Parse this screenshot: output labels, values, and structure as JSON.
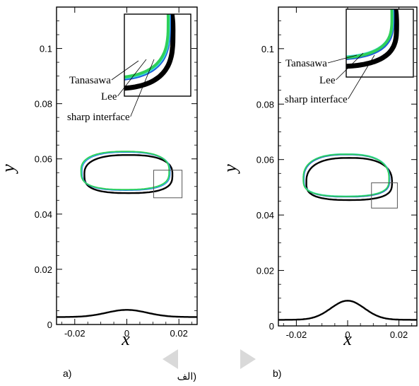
{
  "figure": {
    "background": "#ffffff"
  },
  "chart_data": [
    {
      "panel": "a",
      "type": "line",
      "panel_label": "a)",
      "panel_label_alt": "الف)",
      "xlabel": "x",
      "ylabel": "y",
      "xlim": [
        -0.027,
        0.027
      ],
      "ylim": [
        0,
        0.115
      ],
      "xticks": [
        "-0.02",
        "0",
        "0.02"
      ],
      "xtick_values": [
        -0.02,
        0,
        0.02
      ],
      "yticks": [
        "0",
        "0.02",
        "0.04",
        "0.06",
        "0.08",
        "0.1"
      ],
      "ytick_values": [
        0,
        0.02,
        0.04,
        0.06,
        0.08,
        0.1
      ],
      "bubble": {
        "cy": 0.0555,
        "rx": 0.0169,
        "top": 0.0623,
        "bottom": 0.0485
      },
      "interface": {
        "base": 0.0027,
        "peak": 0.0053,
        "width": 0.011
      },
      "series": [
        {
          "name": "Tanasawa",
          "color": "#2fd05a",
          "dx": -0.0007,
          "dy": 0.0004
        },
        {
          "name": "Lee",
          "color": "#1e5ad8",
          "dx": -0.0004,
          "dy": 0.0002
        },
        {
          "name": "sharp interface",
          "color": "#000000",
          "dx": 0.0006,
          "dy": -0.0009
        }
      ],
      "extra_curve_color": "#3fd6e0",
      "zoom_box": {
        "x0": 0.0103,
        "x1": 0.0212,
        "y0": 0.0459,
        "y1": 0.0559
      },
      "inset_view": {
        "x0": 0.0044,
        "x1": 0.0223,
        "y0": 0.0467,
        "y1": 0.0565
      },
      "labels": [
        "Tanasawa",
        "Lee",
        "sharp interface"
      ]
    },
    {
      "panel": "b",
      "type": "line",
      "panel_label": "b)",
      "xlabel": "x",
      "ylabel": "y",
      "xlim": [
        -0.027,
        0.027
      ],
      "ylim": [
        0,
        0.115
      ],
      "xticks": [
        "-0.02",
        "0",
        "0.02"
      ],
      "xtick_values": [
        -0.02,
        0,
        0.02
      ],
      "yticks": [
        "0",
        "0.02",
        "0.04",
        "0.06",
        "0.08",
        "0.1"
      ],
      "ytick_values": [
        0,
        0.02,
        0.04,
        0.06,
        0.08,
        0.1
      ],
      "bubble": {
        "cy": 0.053,
        "rx": 0.0167,
        "top": 0.0617,
        "bottom": 0.0465
      },
      "interface": {
        "base": 0.0022,
        "peak": 0.0091,
        "width": 0.0092
      },
      "series": [
        {
          "name": "Tanasawa",
          "color": "#2fd05a",
          "dx": -0.0006,
          "dy": 0.0002
        },
        {
          "name": "Lee",
          "color": "#1e5ad8",
          "dx": -0.0004,
          "dy": 0.0001
        },
        {
          "name": "sharp interface",
          "color": "#000000",
          "dx": 0.0006,
          "dy": -0.0011
        }
      ],
      "extra_curve_color": "#3fd6e0",
      "zoom_box": {
        "x0": 0.0093,
        "x1": 0.0194,
        "y0": 0.0425,
        "y1": 0.0516
      },
      "inset_view": {
        "x0": 0.0044,
        "x1": 0.0216,
        "y0": 0.0438,
        "y1": 0.0542
      },
      "labels": [
        "Tanasawa",
        "Lee",
        "sharp interface"
      ]
    }
  ]
}
